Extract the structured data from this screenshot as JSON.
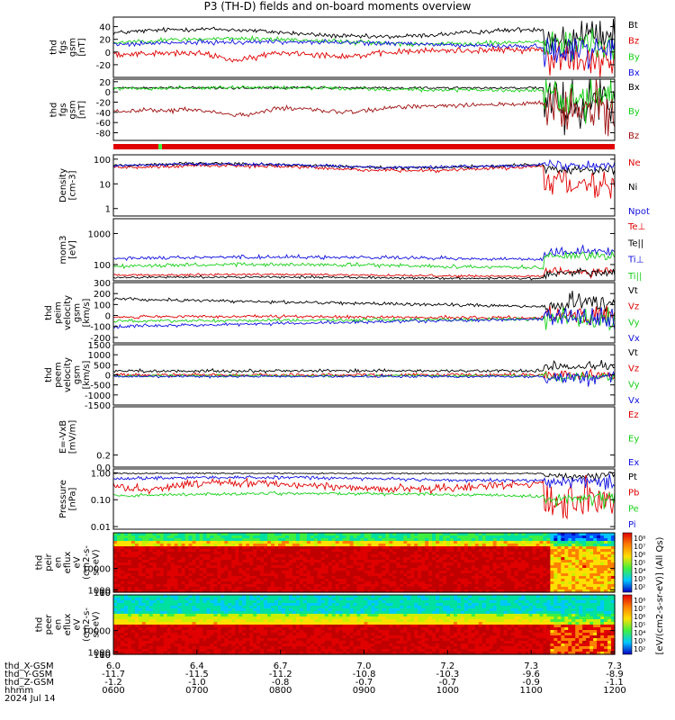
{
  "title": "P3 (TH-D) fields and on-board moments overview",
  "colors": {
    "black": "#000000",
    "red": "#e00000",
    "green": "#18d018",
    "blue": "#1010e0",
    "darkred": "#a01010"
  },
  "chart_data": [
    {
      "type": "line",
      "panel": "fgs_gsm",
      "ylabel": [
        "thd",
        "fgs",
        "gsm",
        "[nT]"
      ],
      "ylim": [
        -40,
        55
      ],
      "yticks": [
        40,
        20,
        0,
        -20
      ],
      "series": [
        {
          "name": "Bt",
          "color": "black"
        },
        {
          "name": "Bz",
          "color": "red"
        },
        {
          "name": "By",
          "color": "green"
        },
        {
          "name": "Bx",
          "color": "blue"
        }
      ]
    },
    {
      "type": "line",
      "panel": "fgs_dsl",
      "ylabel": [
        "thd",
        "fgs",
        "gsm",
        "[nT]"
      ],
      "ylim": [
        -95,
        25
      ],
      "yticks": [
        20,
        0,
        -20,
        -40,
        -60,
        -80
      ],
      "series": [
        {
          "name": "Bx",
          "color": "black"
        },
        {
          "name": "By",
          "color": "green"
        },
        {
          "name": "Bz",
          "color": "darkred"
        }
      ]
    },
    {
      "type": "line",
      "panel": "density",
      "log": true,
      "ylabel": [
        "Density",
        "[cm-3]"
      ],
      "ylim": [
        0.5,
        150
      ],
      "yticks": [
        "100",
        "10",
        "1"
      ],
      "series": [
        {
          "name": "Ne",
          "color": "red"
        },
        {
          "name": "Ni",
          "color": "black"
        },
        {
          "name": "Npot",
          "color": "blue"
        }
      ]
    },
    {
      "type": "line",
      "panel": "temperature",
      "log": true,
      "ylabel": [
        "mom3",
        "[eV]"
      ],
      "ylim": [
        30,
        3000
      ],
      "yticks": [
        "1000",
        "100"
      ],
      "series": [
        {
          "name": "Te⊥",
          "color": "red"
        },
        {
          "name": "Te||",
          "color": "black"
        },
        {
          "name": "Ti⊥",
          "color": "blue"
        },
        {
          "name": "Ti||",
          "color": "green"
        }
      ]
    },
    {
      "type": "line",
      "panel": "peim_velocity",
      "ylabel": [
        "thd",
        "peim",
        "velocity",
        "gsm",
        "[km/s]"
      ],
      "ylim": [
        -250,
        300
      ],
      "yticks": [
        300,
        200,
        100,
        0,
        -100,
        -200
      ],
      "series": [
        {
          "name": "Vt",
          "color": "black"
        },
        {
          "name": "Vz",
          "color": "red"
        },
        {
          "name": "Vy",
          "color": "green"
        },
        {
          "name": "Vx",
          "color": "blue"
        }
      ]
    },
    {
      "type": "line",
      "panel": "peem_velocity",
      "ylabel": [
        "thd",
        "peem",
        "velocity",
        "gsm",
        "[km/s]"
      ],
      "ylim": [
        -1500,
        1500
      ],
      "yticks": [
        1500,
        1000,
        500,
        0,
        -500,
        -1000,
        -1500
      ],
      "series": [
        {
          "name": "Vt",
          "color": "black"
        },
        {
          "name": "Vz",
          "color": "red"
        },
        {
          "name": "Vy",
          "color": "green"
        },
        {
          "name": "Vx",
          "color": "blue"
        }
      ]
    },
    {
      "type": "line",
      "panel": "efield",
      "ylabel": [
        "E=-VxB",
        "[mV/m]"
      ],
      "ylim": [
        0,
        1
      ],
      "yticks": [
        "0.0",
        "0.2"
      ],
      "series": [
        {
          "name": "Ez",
          "color": "red"
        },
        {
          "name": "Ey",
          "color": "green"
        },
        {
          "name": "Ex",
          "color": "blue"
        }
      ]
    },
    {
      "type": "line",
      "panel": "pressure",
      "log": true,
      "ylabel": [
        "Pressure",
        "[nPa]"
      ],
      "ylim": [
        0.008,
        1.4
      ],
      "yticks": [
        "1.00",
        "0.10",
        "0.01"
      ],
      "series": [
        {
          "name": "Pt",
          "color": "black"
        },
        {
          "name": "Pb",
          "color": "red"
        },
        {
          "name": "Pe",
          "color": "green"
        },
        {
          "name": "Pi",
          "color": "blue"
        }
      ]
    },
    {
      "type": "heatmap",
      "panel": "peir_spectrogram",
      "ylabel": [
        "thd",
        "peir",
        "en",
        "eflux",
        "eV",
        "(cm2-s-",
        "sr-eV)"
      ],
      "ylim": [
        7,
        25000
      ],
      "yticks": [
        "10000",
        "1000",
        "100",
        "10"
      ]
    },
    {
      "type": "heatmap",
      "panel": "peer_spectrogram",
      "ylabel": [
        "thd",
        "peer",
        "en",
        "eflux",
        "eV",
        "(cm2-s-",
        "sr-eV)"
      ],
      "ylim": [
        7,
        25000
      ],
      "yticks": [
        "10000",
        "1000",
        "100",
        "10"
      ]
    }
  ],
  "colorbar": {
    "label": "[eV/(cm2-s-sr-eV)] (All Qs)",
    "ticks": [
      "10⁸",
      "10⁷",
      "10⁶",
      "10⁵",
      "10⁴",
      "10³",
      "10²"
    ]
  },
  "x_axis": {
    "rows": [
      {
        "label": "thd_X-GSM",
        "values": [
          "6.0",
          "6.4",
          "6.7",
          "7.0",
          "7.2",
          "7.3",
          "7.3"
        ]
      },
      {
        "label": "thd_Y-GSM",
        "values": [
          "-11.7",
          "-11.5",
          "-11.2",
          "-10.8",
          "-10.3",
          "-9.6",
          "-8.9"
        ]
      },
      {
        "label": "thd_Z-GSM",
        "values": [
          "-1.2",
          "-1.0",
          "-0.8",
          "-0.7",
          "-0.7",
          "-0.9",
          "-1.1"
        ]
      },
      {
        "label": "hhmm",
        "values": [
          "0600",
          "0700",
          "0800",
          "0900",
          "1000",
          "1100",
          "1200"
        ]
      }
    ],
    "date": "2024 Jul 14"
  }
}
